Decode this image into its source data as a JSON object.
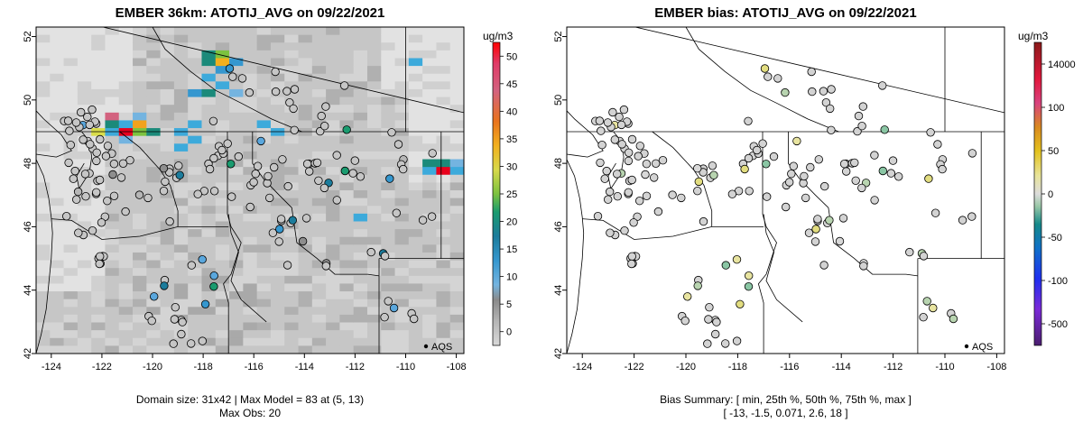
{
  "left_panel": {
    "title": "EMBER 36km: ATOTIJ_AVG on 09/22/2021",
    "caption_line1": "Domain size: 31x42 | Max Model = 83 at (5, 13)",
    "caption_line2": "Max Obs: 20",
    "colorbar_unit": "ug/m3",
    "colorbar_ticks": [
      "0",
      "5",
      "10",
      "15",
      "20",
      "25",
      "30",
      "35",
      "40",
      "45",
      "50"
    ],
    "legend_label": "AQS"
  },
  "right_panel": {
    "title": "EMBER bias: ATOTIJ_AVG on 09/22/2021",
    "caption_line1": "Bias Summary: [ min, 25th %, 50th %, 75th %, max ]",
    "caption_line2": "[ -13,  -1.5,  0.071,  2.6,  18 ]",
    "colorbar_unit": "ug/m3",
    "colorbar_ticks": [
      "-500",
      "-100",
      "-50",
      "0",
      "50",
      "100",
      "14000"
    ],
    "legend_label": "AQS"
  },
  "axes": {
    "x_ticks": [
      "-124",
      "-122",
      "-120",
      "-118",
      "-116",
      "-114",
      "-112",
      "-110",
      "-108"
    ],
    "y_ticks": [
      "42",
      "44",
      "46",
      "48",
      "50",
      "52"
    ],
    "lon_range": [
      -124.6,
      -107.7
    ],
    "lat_range": [
      42.0,
      52.3
    ]
  },
  "colors": {
    "hot_cell": "#e8001c",
    "mid_cell": "#3daadb",
    "high_cell": "#1b8a7a",
    "background_gray": "#c8c8c8"
  }
}
